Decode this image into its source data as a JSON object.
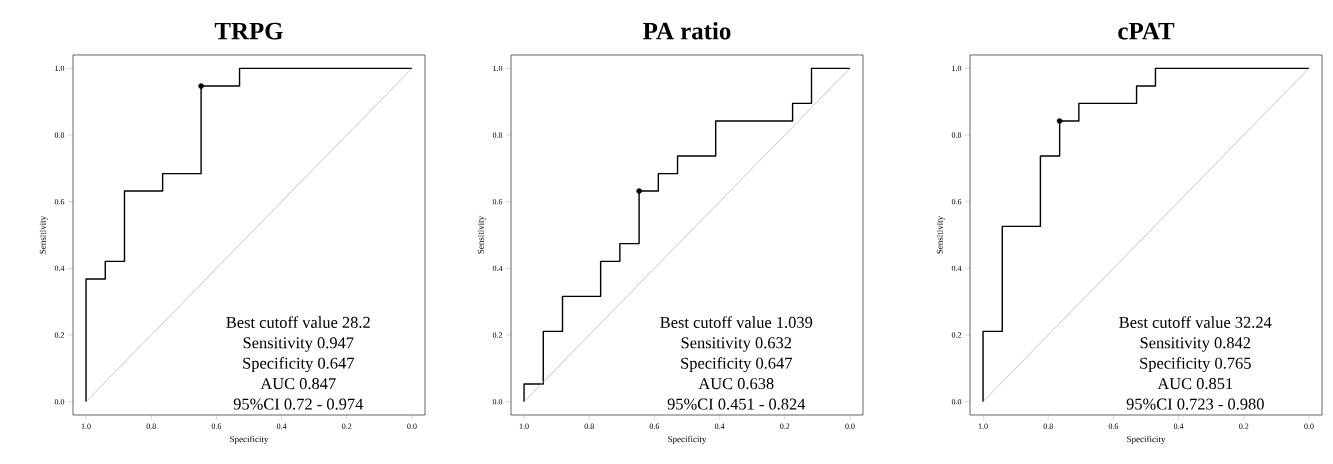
{
  "chart_data": [
    {
      "type": "line",
      "title": "TRPG",
      "xlabel": "Specificity",
      "ylabel": "Sensitivity",
      "xlim": [
        1.04,
        -0.04
      ],
      "ylim": [
        -0.04,
        1.04
      ],
      "xticks": [
        {
          "value": 1,
          "label": "1.0"
        },
        {
          "value": 0.8,
          "label": "0.8"
        },
        {
          "value": 0.6,
          "label": "0.6"
        },
        {
          "value": 0.4,
          "label": "0.4"
        },
        {
          "value": 0.2,
          "label": "0.2"
        },
        {
          "value": 0,
          "label": "0.0"
        }
      ],
      "yticks": [
        {
          "value": 0,
          "label": "0.0"
        },
        {
          "value": 0.2,
          "label": "0.2"
        },
        {
          "value": 0.4,
          "label": "0.4"
        },
        {
          "value": 0.6,
          "label": "0.6"
        },
        {
          "value": 0.8,
          "label": "0.8"
        },
        {
          "value": 1,
          "label": "1.0"
        }
      ],
      "series": [
        {
          "color": "#000000",
          "x": [
            1,
            1,
            0.941,
            0.941,
            0.882,
            0.882,
            0.765,
            0.765,
            0.647,
            0.647,
            0.529,
            0.529,
            0
          ],
          "values": [
            0,
            0.368,
            0.368,
            0.421,
            0.421,
            0.632,
            0.632,
            0.684,
            0.684,
            0.947,
            0.947,
            1,
            1
          ]
        },
        {
          "color": "#b0b0b0",
          "x": [
            1,
            0
          ],
          "values": [
            0,
            1
          ]
        },
        {
          "type": "scatter",
          "color": "#000000",
          "marker": "circle",
          "x": [
            0.647
          ],
          "values": [
            0.947
          ]
        }
      ],
      "annotations": [
        "Best cutoff value 28.2",
        "Sensitivity 0.947",
        "Specificity 0.647",
        "AUC 0.847",
        "95%CI 0.72 - 0.974"
      ]
    },
    {
      "type": "line",
      "title": "PA ratio",
      "xlabel": "Specificity",
      "ylabel": "Sensitivity",
      "xlim": [
        1.04,
        -0.04
      ],
      "ylim": [
        -0.04,
        1.04
      ],
      "xticks": [
        {
          "value": 1,
          "label": "1.0"
        },
        {
          "value": 0.8,
          "label": "0.8"
        },
        {
          "value": 0.6,
          "label": "0.6"
        },
        {
          "value": 0.4,
          "label": "0.4"
        },
        {
          "value": 0.2,
          "label": "0.2"
        },
        {
          "value": 0,
          "label": "0.0"
        }
      ],
      "yticks": [
        {
          "value": 0,
          "label": "0.0"
        },
        {
          "value": 0.2,
          "label": "0.2"
        },
        {
          "value": 0.4,
          "label": "0.4"
        },
        {
          "value": 0.6,
          "label": "0.6"
        },
        {
          "value": 0.8,
          "label": "0.8"
        },
        {
          "value": 1,
          "label": "1.0"
        }
      ],
      "series": [
        {
          "color": "#000000",
          "x": [
            1,
            1,
            0.941,
            0.941,
            0.882,
            0.882,
            0.765,
            0.765,
            0.706,
            0.706,
            0.647,
            0.647,
            0.588,
            0.588,
            0.529,
            0.529,
            0.412,
            0.412,
            0.176,
            0.176,
            0.118,
            0.118,
            0
          ],
          "values": [
            0,
            0.053,
            0.053,
            0.211,
            0.211,
            0.316,
            0.316,
            0.421,
            0.421,
            0.474,
            0.474,
            0.632,
            0.632,
            0.684,
            0.684,
            0.737,
            0.737,
            0.842,
            0.842,
            0.895,
            0.895,
            1,
            1
          ]
        },
        {
          "color": "#b0b0b0",
          "x": [
            1,
            0
          ],
          "values": [
            0,
            1
          ]
        },
        {
          "type": "scatter",
          "color": "#000000",
          "marker": "circle",
          "x": [
            0.647
          ],
          "values": [
            0.632
          ]
        }
      ],
      "annotations": [
        "Best cutoff value 1.039",
        "Sensitivity 0.632",
        "Specificity 0.647",
        "AUC 0.638",
        "95%CI 0.451 - 0.824"
      ]
    },
    {
      "type": "line",
      "title": "cPAT",
      "xlabel": "Specificity",
      "ylabel": "Sensitivity",
      "xlim": [
        1.04,
        -0.04
      ],
      "ylim": [
        -0.04,
        1.04
      ],
      "xticks": [
        {
          "value": 1,
          "label": "1.0"
        },
        {
          "value": 0.8,
          "label": "0.8"
        },
        {
          "value": 0.6,
          "label": "0.6"
        },
        {
          "value": 0.4,
          "label": "0.4"
        },
        {
          "value": 0.2,
          "label": "0.2"
        },
        {
          "value": 0,
          "label": "0.0"
        }
      ],
      "yticks": [
        {
          "value": 0,
          "label": "0.0"
        },
        {
          "value": 0.2,
          "label": "0.2"
        },
        {
          "value": 0.4,
          "label": "0.4"
        },
        {
          "value": 0.6,
          "label": "0.6"
        },
        {
          "value": 0.8,
          "label": "0.8"
        },
        {
          "value": 1,
          "label": "1.0"
        }
      ],
      "series": [
        {
          "color": "#000000",
          "x": [
            1,
            1,
            0.941,
            0.941,
            0.824,
            0.824,
            0.765,
            0.765,
            0.706,
            0.706,
            0.529,
            0.529,
            0.471,
            0.471,
            0
          ],
          "values": [
            0,
            0.211,
            0.211,
            0.526,
            0.526,
            0.737,
            0.737,
            0.842,
            0.842,
            0.895,
            0.895,
            0.947,
            0.947,
            1,
            1
          ]
        },
        {
          "color": "#b0b0b0",
          "x": [
            1,
            0
          ],
          "values": [
            0,
            1
          ]
        },
        {
          "type": "scatter",
          "color": "#000000",
          "marker": "circle",
          "x": [
            0.765
          ],
          "values": [
            0.842
          ]
        }
      ],
      "annotations": [
        "Best cutoff value 32.24",
        "Sensitivity 0.842",
        "Specificity 0.765",
        "AUC 0.851",
        "95%CI 0.723 - 0.980"
      ]
    }
  ]
}
